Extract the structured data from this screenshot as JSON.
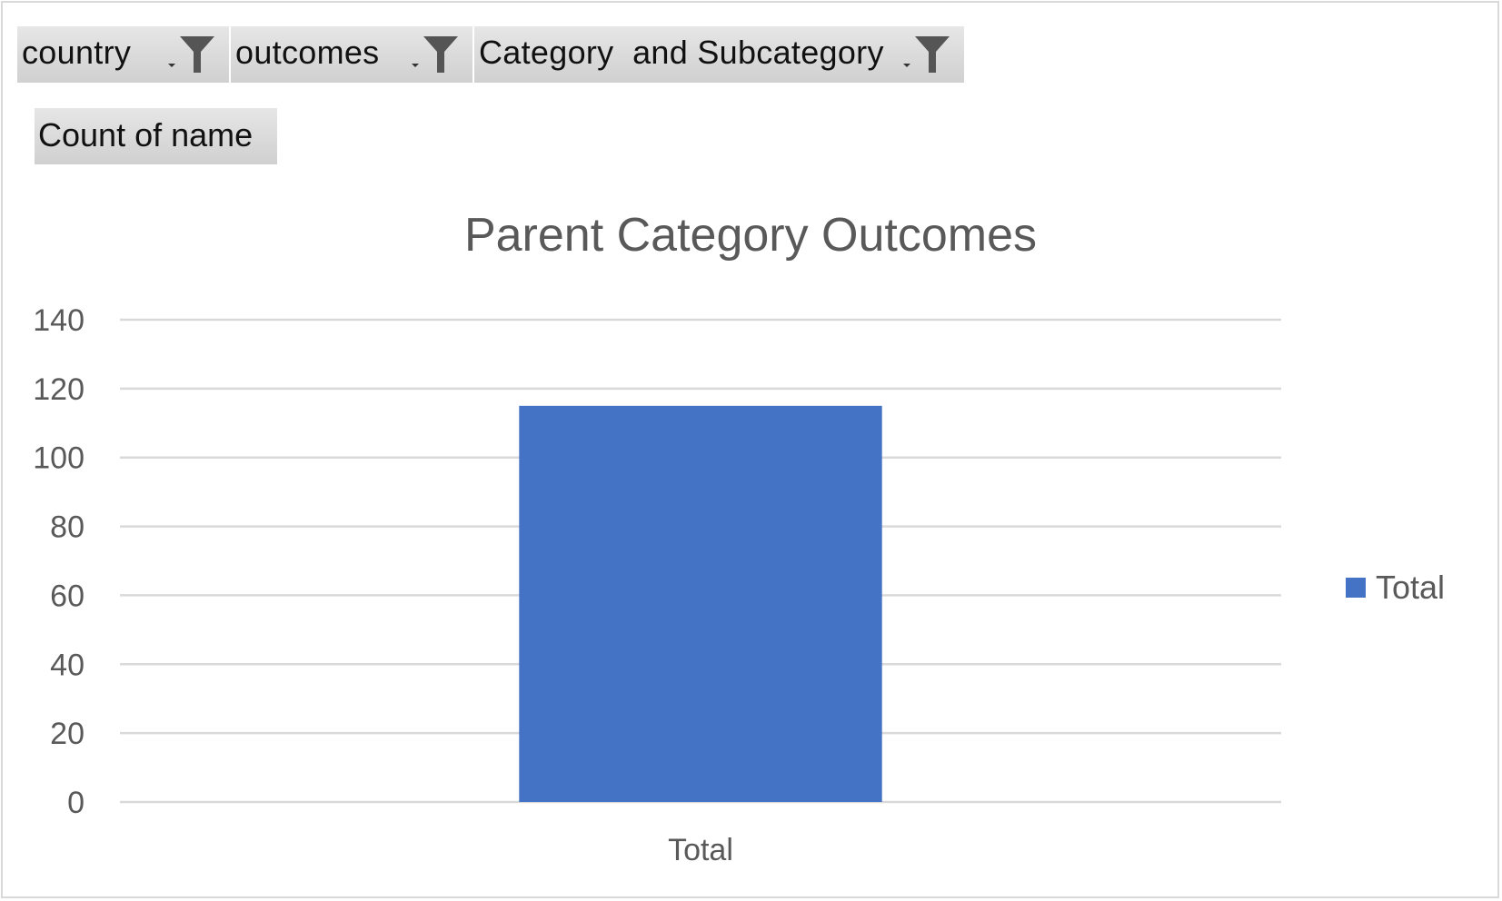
{
  "filters": [
    {
      "label": "country",
      "icon": "filter-funnel-icon"
    },
    {
      "label": "outcomes",
      "icon": "filter-funnel-icon"
    },
    {
      "label": "Category  and Subcategory",
      "icon": "filter-funnel-icon"
    }
  ],
  "value_field": {
    "label": "Count of name"
  },
  "colors": {
    "bar": "#4472C4",
    "gridline": "#d9d9d9",
    "text": "#595959",
    "field_button": "#d9d9d9"
  },
  "chart_data": {
    "type": "bar",
    "title": "Parent Category Outcomes",
    "categories": [
      "Total"
    ],
    "series": [
      {
        "name": "Total",
        "values": [
          115
        ]
      }
    ],
    "xlabel": "",
    "ylabel": "",
    "ylim": [
      0,
      140
    ],
    "yticks": [
      0,
      20,
      40,
      60,
      80,
      100,
      120,
      140
    ],
    "grid": true,
    "legend": "right"
  }
}
